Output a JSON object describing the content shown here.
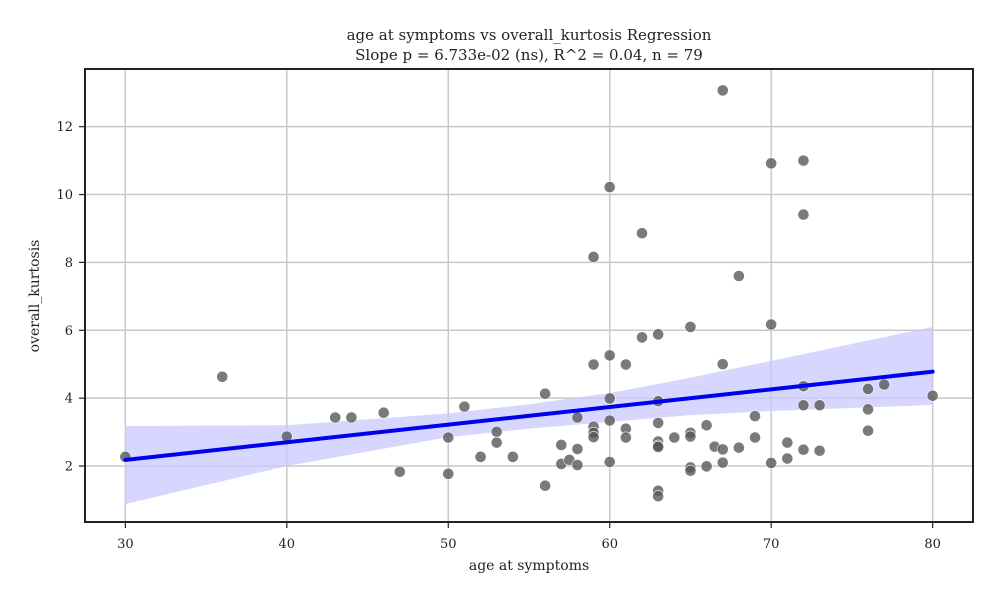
{
  "chart_data": {
    "type": "scatter",
    "title": "age at symptoms vs overall_kurtosis Regression",
    "subtitle": "Slope p = 6.733e-02 (ns), R^2 = 0.04, n = 79",
    "xlabel": "age at symptoms",
    "ylabel": "overall_kurtosis",
    "xlim": [
      27.5,
      82.5
    ],
    "ylim": [
      0.35,
      13.7
    ],
    "xticks": [
      30,
      40,
      50,
      60,
      70,
      80
    ],
    "yticks": [
      2,
      4,
      6,
      8,
      10,
      12
    ],
    "grid": true,
    "colors": {
      "points": "#555555",
      "regression_line": "#0000ee",
      "confidence_band": "#c8c8ff",
      "grid": "#c8c8c8",
      "axes": "#222222"
    },
    "regression": {
      "x": [
        30,
        80
      ],
      "y": [
        2.18,
        4.78
      ]
    },
    "confidence_band": {
      "x": [
        30,
        40,
        50,
        55,
        60,
        65,
        70,
        80
      ],
      "lower": [
        0.88,
        2.0,
        2.85,
        3.1,
        3.3,
        3.5,
        3.62,
        3.8
      ],
      "upper": [
        3.18,
        3.2,
        3.55,
        3.82,
        4.15,
        4.6,
        5.1,
        6.1
      ]
    },
    "points": [
      {
        "x": 30,
        "y": 2.27
      },
      {
        "x": 36,
        "y": 4.63
      },
      {
        "x": 40,
        "y": 2.87
      },
      {
        "x": 43,
        "y": 3.43
      },
      {
        "x": 44,
        "y": 3.43
      },
      {
        "x": 46,
        "y": 3.57
      },
      {
        "x": 47,
        "y": 1.83
      },
      {
        "x": 50,
        "y": 1.77
      },
      {
        "x": 50,
        "y": 2.84
      },
      {
        "x": 51,
        "y": 3.75
      },
      {
        "x": 52,
        "y": 2.27
      },
      {
        "x": 53,
        "y": 2.69
      },
      {
        "x": 53,
        "y": 3.01
      },
      {
        "x": 54,
        "y": 2.27
      },
      {
        "x": 56,
        "y": 4.13
      },
      {
        "x": 56,
        "y": 1.42
      },
      {
        "x": 57,
        "y": 2.62
      },
      {
        "x": 57,
        "y": 2.06
      },
      {
        "x": 57.5,
        "y": 2.18
      },
      {
        "x": 58,
        "y": 3.43
      },
      {
        "x": 58,
        "y": 2.5
      },
      {
        "x": 58,
        "y": 2.03
      },
      {
        "x": 59,
        "y": 8.16
      },
      {
        "x": 59,
        "y": 4.99
      },
      {
        "x": 59,
        "y": 3.16
      },
      {
        "x": 59,
        "y": 2.98
      },
      {
        "x": 59,
        "y": 2.85
      },
      {
        "x": 60,
        "y": 10.22
      },
      {
        "x": 60,
        "y": 5.26
      },
      {
        "x": 60,
        "y": 3.99
      },
      {
        "x": 60,
        "y": 3.34
      },
      {
        "x": 60,
        "y": 2.12
      },
      {
        "x": 61,
        "y": 4.99
      },
      {
        "x": 61,
        "y": 3.1
      },
      {
        "x": 61,
        "y": 2.84
      },
      {
        "x": 62,
        "y": 8.86
      },
      {
        "x": 62,
        "y": 5.79
      },
      {
        "x": 63,
        "y": 5.88
      },
      {
        "x": 63,
        "y": 3.91
      },
      {
        "x": 63,
        "y": 3.27
      },
      {
        "x": 63,
        "y": 2.72
      },
      {
        "x": 63,
        "y": 2.6
      },
      {
        "x": 63,
        "y": 2.56
      },
      {
        "x": 63,
        "y": 1.27
      },
      {
        "x": 63,
        "y": 1.11
      },
      {
        "x": 64,
        "y": 2.84
      },
      {
        "x": 65,
        "y": 6.1
      },
      {
        "x": 65,
        "y": 2.98
      },
      {
        "x": 65,
        "y": 2.87
      },
      {
        "x": 65,
        "y": 1.96
      },
      {
        "x": 65,
        "y": 1.86
      },
      {
        "x": 66,
        "y": 3.2
      },
      {
        "x": 66,
        "y": 1.99
      },
      {
        "x": 66.5,
        "y": 2.57
      },
      {
        "x": 67,
        "y": 13.07
      },
      {
        "x": 67,
        "y": 5.0
      },
      {
        "x": 67,
        "y": 2.49
      },
      {
        "x": 67,
        "y": 2.1
      },
      {
        "x": 68,
        "y": 7.6
      },
      {
        "x": 68,
        "y": 2.54
      },
      {
        "x": 69,
        "y": 3.47
      },
      {
        "x": 69,
        "y": 2.84
      },
      {
        "x": 70,
        "y": 10.92
      },
      {
        "x": 70,
        "y": 6.17
      },
      {
        "x": 70,
        "y": 2.09
      },
      {
        "x": 71,
        "y": 2.69
      },
      {
        "x": 71,
        "y": 2.22
      },
      {
        "x": 72,
        "y": 11.0
      },
      {
        "x": 72,
        "y": 9.41
      },
      {
        "x": 72,
        "y": 4.35
      },
      {
        "x": 72,
        "y": 3.79
      },
      {
        "x": 72,
        "y": 2.48
      },
      {
        "x": 73,
        "y": 3.79
      },
      {
        "x": 73,
        "y": 2.45
      },
      {
        "x": 76,
        "y": 4.27
      },
      {
        "x": 76,
        "y": 3.67
      },
      {
        "x": 76,
        "y": 3.04
      },
      {
        "x": 77,
        "y": 4.4
      },
      {
        "x": 80,
        "y": 4.07
      }
    ]
  }
}
